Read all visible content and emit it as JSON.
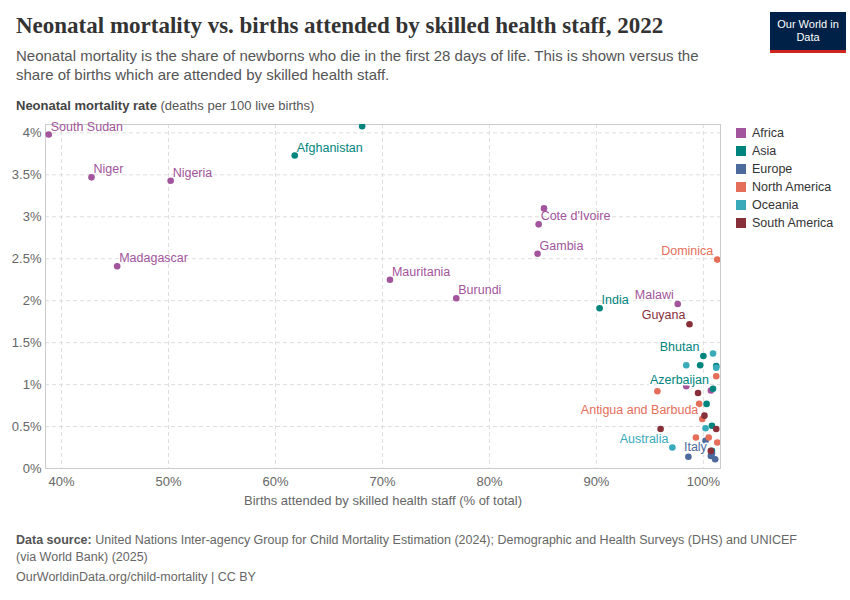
{
  "chart_data": {
    "type": "scatter",
    "title": "Neonatal mortality vs. births attended by skilled health staff, 2022",
    "subtitle": "Neonatal mortality is the share of newborns who die in the first 28 days of life. This is shown versus the share of births which are attended by skilled health staff.",
    "ylabel_bold": "Neonatal mortality rate",
    "ylabel_unit": "(deaths per 100 live births)",
    "xlabel": "Births attended by skilled health staff (% of total)",
    "source_label": "Data source:",
    "source": "United Nations Inter-agency Group for Child Mortality Estimation (2024); Demographic and Health Surveys (DHS) and UNICEF (via World Bank) (2025)",
    "footer": "OurWorldinData.org/child-mortality | CC BY",
    "logo": "Our World in Data",
    "xlim": [
      38.5,
      101.6
    ],
    "ylim": [
      0,
      4.1
    ],
    "xticks": [
      {
        "value": 40,
        "label": "40%"
      },
      {
        "value": 50,
        "label": "50%"
      },
      {
        "value": 60,
        "label": "60%"
      },
      {
        "value": 70,
        "label": "70%"
      },
      {
        "value": 80,
        "label": "80%"
      },
      {
        "value": 90,
        "label": "90%"
      },
      {
        "value": 100,
        "label": "100%"
      }
    ],
    "yticks": [
      {
        "value": 0,
        "label": "0%"
      },
      {
        "value": 0.5,
        "label": "0.5%"
      },
      {
        "value": 1,
        "label": "1%"
      },
      {
        "value": 1.5,
        "label": "1.5%"
      },
      {
        "value": 2,
        "label": "2%"
      },
      {
        "value": 2.5,
        "label": "2.5%"
      },
      {
        "value": 3,
        "label": "3%"
      },
      {
        "value": 3.5,
        "label": "3.5%"
      },
      {
        "value": 4,
        "label": "4%"
      }
    ],
    "grid": true,
    "legend": "right",
    "marker": "circle",
    "series": [
      {
        "name": "Africa",
        "color": "#a2559c",
        "x": [
          38.8,
          42.8,
          50.2,
          45.2,
          70.7,
          76.9,
          84.6,
          85.1,
          84.5,
          97.6,
          98.4,
          100.7
        ],
        "values": [
          3.98,
          3.47,
          3.43,
          2.41,
          2.25,
          2.03,
          2.91,
          3.1,
          2.56,
          1.96,
          0.98,
          0.93
        ],
        "labels": [
          "South Sudan",
          "Niger",
          "Nigeria",
          "Madagascar",
          "Mauritania",
          "Burundi",
          "Cote d'Ivoire",
          null,
          "Gambia",
          "Malawi",
          null,
          null
        ]
      },
      {
        "name": "Asia",
        "color": "#00847e",
        "x": [
          61.8,
          68.1,
          90.3,
          100.0,
          100.9,
          99.7,
          101.2,
          100.3,
          100.8,
          100.8
        ],
        "values": [
          3.73,
          4.08,
          1.91,
          1.34,
          0.95,
          1.23,
          1.22,
          0.77,
          0.51,
          0.21
        ],
        "labels": [
          "Afghanistan",
          null,
          "India",
          "Bhutan",
          "Azerbaijan",
          null,
          null,
          null,
          null,
          null
        ]
      },
      {
        "name": "Europe",
        "color": "#4c6a9c",
        "x": [
          100.7,
          98.6,
          101.1,
          100.8,
          100.2
        ],
        "values": [
          0.15,
          0.14,
          0.11,
          0.18,
          0.33
        ],
        "labels": [
          "Italy",
          null,
          null,
          null,
          null
        ]
      },
      {
        "name": "North America",
        "color": "#e56e5a",
        "x": [
          101.3,
          99.9,
          101.2,
          95.7,
          99.6,
          99.3,
          100.5,
          101.3
        ],
        "values": [
          2.49,
          0.59,
          1.1,
          0.92,
          0.77,
          0.37,
          0.37,
          0.31
        ],
        "labels": [
          "Dominica",
          "Antigua and Barbuda",
          null,
          null,
          null,
          null,
          null,
          null
        ]
      },
      {
        "name": "Oceania",
        "color": "#38aaba",
        "x": [
          97.1,
          98.4,
          100.9,
          101.2,
          100.2
        ],
        "values": [
          0.25,
          1.23,
          1.37,
          1.2,
          0.48
        ],
        "labels": [
          "Australia",
          null,
          null,
          null,
          null
        ]
      },
      {
        "name": "South America",
        "color": "#883039",
        "x": [
          98.7,
          99.5,
          96.0,
          100.1,
          101.2,
          100.7
        ],
        "values": [
          1.72,
          0.9,
          0.47,
          0.63,
          0.47,
          0.21
        ],
        "labels": [
          "Guyana",
          null,
          null,
          null,
          null,
          null
        ]
      }
    ]
  }
}
